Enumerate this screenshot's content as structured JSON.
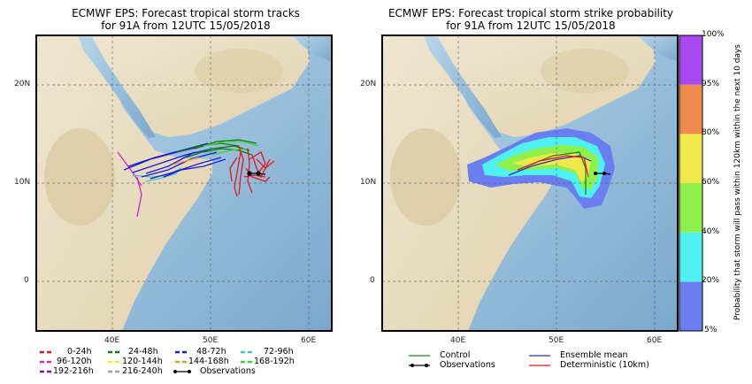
{
  "left_panel": {
    "title_line1": "ECMWF EPS: Forecast tropical storm tracks",
    "title_line2": "for 91A from 12UTC 15/05/2018"
  },
  "right_panel": {
    "title_line1": "ECMWF EPS: Forecast tropical storm strike probability",
    "title_line2": "for 91A from 12UTC 15/05/2018"
  },
  "lat_labels": [
    "20N",
    "10N",
    "0"
  ],
  "lon_labels": [
    "40E",
    "50E",
    "60E"
  ],
  "legend_left": [
    {
      "label": "0-24h",
      "color": "#e8141c"
    },
    {
      "label": "24-48h",
      "color": "#107a10"
    },
    {
      "label": "48-72h",
      "color": "#1a1adc"
    },
    {
      "label": "72-96h",
      "color": "#3cc8c8"
    },
    {
      "label": "96-120h",
      "color": "#c828c8"
    },
    {
      "label": "120-144h",
      "color": "#e8e83c"
    },
    {
      "label": "144-168h",
      "color": "#e0a020"
    },
    {
      "label": "168-192h",
      "color": "#3cd23c"
    },
    {
      "label": "192-216h",
      "color": "#6a1a8a"
    },
    {
      "label": "216-240h",
      "color": "#a0a0a0"
    },
    {
      "label": "Observations",
      "color": "#000000"
    }
  ],
  "legend_right": [
    {
      "label": "Control",
      "color": "#1a8a1a"
    },
    {
      "label": "Ensemble mean",
      "color": "#2a2ad0"
    },
    {
      "label": "Observations",
      "color": "#000000"
    },
    {
      "label": "Deterministic (10km)",
      "color": "#e01818"
    }
  ],
  "colorbar": {
    "title": "Probability that storm will pass within 120km within the next 10 days",
    "levels": [
      "5%",
      "20%",
      "40%",
      "60%",
      "80%",
      "95%",
      "100%"
    ],
    "colors": [
      "#6a7ef0",
      "#4ef0f0",
      "#8ef04a",
      "#f0e84a",
      "#f08a4a",
      "#a848f0"
    ]
  }
}
